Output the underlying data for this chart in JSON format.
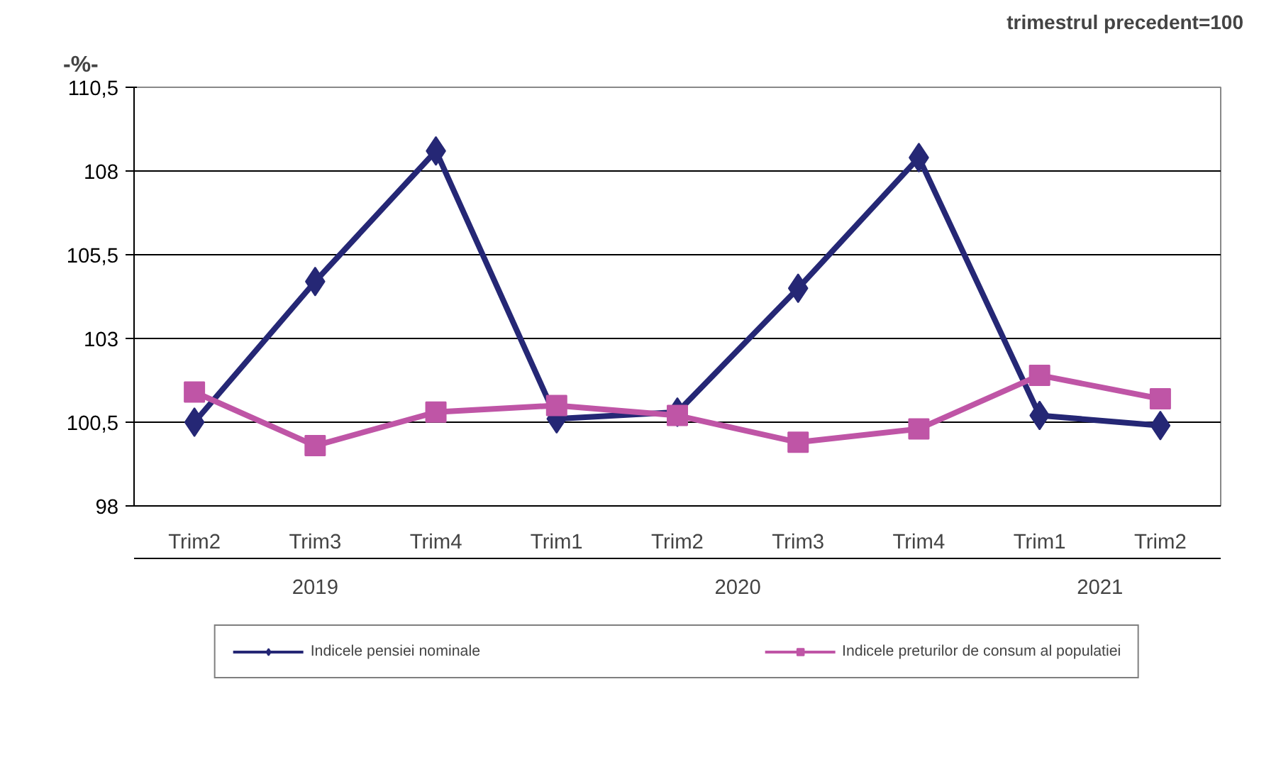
{
  "chart_data": {
    "type": "line",
    "ylabel": "-%-",
    "subtitle": "trimestrul precedent=100",
    "categories": [
      "Trim2",
      "Trim3",
      "Trim4",
      "Trim1",
      "Trim2",
      "Trim3",
      "Trim4",
      "Trim1",
      "Trim2"
    ],
    "series": [
      {
        "name": "Indicele pensiei nominale",
        "color": "#252775",
        "marker": "diamond",
        "values": [
          100.5,
          104.7,
          108.6,
          100.6,
          100.8,
          104.5,
          108.4,
          100.7,
          100.4
        ]
      },
      {
        "name": "Indicele preturilor de consum al populatiei",
        "color": "#bf55a6",
        "marker": "square",
        "values": [
          101.4,
          99.8,
          100.8,
          101.0,
          100.7,
          99.9,
          100.3,
          101.9,
          101.2
        ]
      }
    ],
    "annotations": [
      "2019",
      "2020",
      "2021"
    ],
    "ylim": [
      98,
      110.5
    ],
    "yticks": [
      98,
      {
        "value": 100.5,
        "label": "100,5"
      },
      103,
      {
        "value": 105.5,
        "label": "105,5"
      },
      108,
      {
        "value": 110.5,
        "label": "110,5"
      }
    ],
    "grid": "y",
    "legend": "bottom"
  }
}
